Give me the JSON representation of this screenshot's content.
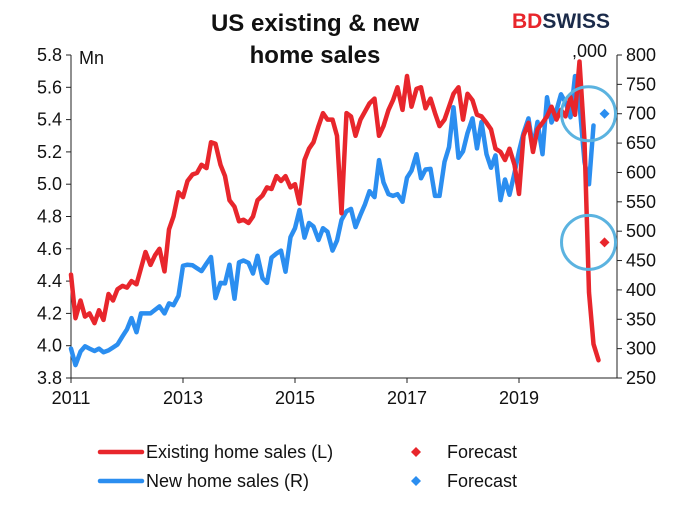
{
  "brand": {
    "part1": "BD",
    "part2": "SWISS",
    "color_bd": "#e8262c",
    "color_swiss": "#1b2b4a"
  },
  "chart_data": {
    "type": "line",
    "title": "US existing & new home sales",
    "title_lines": [
      "US existing & new",
      "home sales"
    ],
    "left_axis": {
      "unit": "Mn",
      "ticks": [
        "5.8",
        "5.6",
        "5.4",
        "5.2",
        "5.0",
        "4.8",
        "4.6",
        "4.4",
        "4.2",
        "4.0",
        "3.8"
      ],
      "ylim": [
        3.8,
        5.8
      ]
    },
    "right_axis": {
      "unit": ",000",
      "ticks": [
        "800",
        "750",
        "700",
        "650",
        "600",
        "550",
        "500",
        "450",
        "400",
        "350",
        "300",
        "250"
      ],
      "ylim": [
        250,
        800
      ]
    },
    "x_ticks": [
      {
        "label": "2011",
        "year": 2011
      },
      {
        "label": "2013",
        "year": 2013
      },
      {
        "label": "2015",
        "year": 2015
      },
      {
        "label": "2017",
        "year": 2017
      },
      {
        "label": "2019",
        "year": 2019
      }
    ],
    "xlim": [
      2011,
      2020.75
    ],
    "series": [
      {
        "name": "Existing home sales (L)",
        "axis": "left",
        "color": "#e8262c",
        "points": [
          [
            2011.0,
            4.44
          ],
          [
            2011.08,
            4.17
          ],
          [
            2011.17,
            4.28
          ],
          [
            2011.25,
            4.18
          ],
          [
            2011.33,
            4.2
          ],
          [
            2011.42,
            4.14
          ],
          [
            2011.5,
            4.22
          ],
          [
            2011.58,
            4.16
          ],
          [
            2011.67,
            4.32
          ],
          [
            2011.75,
            4.28
          ],
          [
            2011.83,
            4.35
          ],
          [
            2011.92,
            4.37
          ],
          [
            2012.0,
            4.36
          ],
          [
            2012.08,
            4.4
          ],
          [
            2012.17,
            4.38
          ],
          [
            2012.25,
            4.48
          ],
          [
            2012.33,
            4.58
          ],
          [
            2012.42,
            4.5
          ],
          [
            2012.5,
            4.56
          ],
          [
            2012.58,
            4.6
          ],
          [
            2012.67,
            4.46
          ],
          [
            2012.75,
            4.72
          ],
          [
            2012.83,
            4.8
          ],
          [
            2012.92,
            4.95
          ],
          [
            2013.0,
            4.92
          ],
          [
            2013.08,
            5.02
          ],
          [
            2013.17,
            5.06
          ],
          [
            2013.25,
            5.07
          ],
          [
            2013.33,
            5.12
          ],
          [
            2013.42,
            5.1
          ],
          [
            2013.5,
            5.26
          ],
          [
            2013.58,
            5.25
          ],
          [
            2013.67,
            5.12
          ],
          [
            2013.75,
            5.05
          ],
          [
            2013.83,
            4.9
          ],
          [
            2013.92,
            4.86
          ],
          [
            2014.0,
            4.77
          ],
          [
            2014.08,
            4.78
          ],
          [
            2014.17,
            4.76
          ],
          [
            2014.25,
            4.8
          ],
          [
            2014.33,
            4.9
          ],
          [
            2014.42,
            4.93
          ],
          [
            2014.5,
            4.98
          ],
          [
            2014.58,
            4.97
          ],
          [
            2014.67,
            5.05
          ],
          [
            2014.75,
            5.02
          ],
          [
            2014.83,
            5.05
          ],
          [
            2014.92,
            4.98
          ],
          [
            2015.0,
            5.0
          ],
          [
            2015.08,
            4.88
          ],
          [
            2015.17,
            5.15
          ],
          [
            2015.25,
            5.22
          ],
          [
            2015.33,
            5.26
          ],
          [
            2015.42,
            5.36
          ],
          [
            2015.5,
            5.44
          ],
          [
            2015.58,
            5.4
          ],
          [
            2015.67,
            5.4
          ],
          [
            2015.75,
            5.3
          ],
          [
            2015.83,
            4.82
          ],
          [
            2015.92,
            5.44
          ],
          [
            2016.0,
            5.42
          ],
          [
            2016.08,
            5.3
          ],
          [
            2016.17,
            5.4
          ],
          [
            2016.25,
            5.45
          ],
          [
            2016.33,
            5.5
          ],
          [
            2016.42,
            5.53
          ],
          [
            2016.5,
            5.3
          ],
          [
            2016.58,
            5.36
          ],
          [
            2016.67,
            5.46
          ],
          [
            2016.75,
            5.52
          ],
          [
            2016.83,
            5.6
          ],
          [
            2016.92,
            5.46
          ],
          [
            2017.0,
            5.67
          ],
          [
            2017.08,
            5.48
          ],
          [
            2017.17,
            5.59
          ],
          [
            2017.25,
            5.6
          ],
          [
            2017.33,
            5.47
          ],
          [
            2017.42,
            5.53
          ],
          [
            2017.5,
            5.44
          ],
          [
            2017.58,
            5.36
          ],
          [
            2017.67,
            5.4
          ],
          [
            2017.75,
            5.48
          ],
          [
            2017.83,
            5.56
          ],
          [
            2017.92,
            5.6
          ],
          [
            2018.0,
            5.4
          ],
          [
            2018.08,
            5.56
          ],
          [
            2018.17,
            5.52
          ],
          [
            2018.25,
            5.43
          ],
          [
            2018.33,
            5.42
          ],
          [
            2018.42,
            5.38
          ],
          [
            2018.5,
            5.34
          ],
          [
            2018.58,
            5.22
          ],
          [
            2018.67,
            5.2
          ],
          [
            2018.75,
            5.15
          ],
          [
            2018.83,
            5.22
          ],
          [
            2018.92,
            5.12
          ],
          [
            2019.0,
            4.94
          ],
          [
            2019.08,
            5.3
          ],
          [
            2019.17,
            5.38
          ],
          [
            2019.25,
            5.2
          ],
          [
            2019.33,
            5.34
          ],
          [
            2019.42,
            5.38
          ],
          [
            2019.5,
            5.42
          ],
          [
            2019.58,
            5.48
          ],
          [
            2019.67,
            5.4
          ],
          [
            2019.75,
            5.46
          ],
          [
            2019.83,
            5.42
          ],
          [
            2019.92,
            5.54
          ],
          [
            2020.0,
            5.43
          ],
          [
            2020.08,
            5.76
          ],
          [
            2020.17,
            5.27
          ],
          [
            2020.25,
            4.33
          ],
          [
            2020.33,
            4.01
          ],
          [
            2020.42,
            3.91
          ]
        ]
      },
      {
        "name": "New home sales (R)",
        "axis": "right",
        "color": "#2b8ef0",
        "points": [
          [
            2011.0,
            300
          ],
          [
            2011.08,
            272
          ],
          [
            2011.17,
            295
          ],
          [
            2011.25,
            304
          ],
          [
            2011.33,
            300
          ],
          [
            2011.42,
            296
          ],
          [
            2011.5,
            300
          ],
          [
            2011.58,
            294
          ],
          [
            2011.67,
            297
          ],
          [
            2011.75,
            302
          ],
          [
            2011.83,
            307
          ],
          [
            2011.92,
            321
          ],
          [
            2012.0,
            333
          ],
          [
            2012.08,
            352
          ],
          [
            2012.17,
            328
          ],
          [
            2012.25,
            360
          ],
          [
            2012.33,
            360
          ],
          [
            2012.42,
            360
          ],
          [
            2012.5,
            366
          ],
          [
            2012.58,
            372
          ],
          [
            2012.67,
            360
          ],
          [
            2012.75,
            377
          ],
          [
            2012.83,
            374
          ],
          [
            2012.92,
            390
          ],
          [
            2013.0,
            441
          ],
          [
            2013.08,
            443
          ],
          [
            2013.17,
            442
          ],
          [
            2013.25,
            437
          ],
          [
            2013.33,
            432
          ],
          [
            2013.42,
            445
          ],
          [
            2013.5,
            456
          ],
          [
            2013.58,
            386
          ],
          [
            2013.67,
            412
          ],
          [
            2013.75,
            411
          ],
          [
            2013.83,
            443
          ],
          [
            2013.92,
            385
          ],
          [
            2014.0,
            447
          ],
          [
            2014.08,
            450
          ],
          [
            2014.17,
            446
          ],
          [
            2014.25,
            428
          ],
          [
            2014.33,
            458
          ],
          [
            2014.42,
            420
          ],
          [
            2014.5,
            412
          ],
          [
            2014.58,
            455
          ],
          [
            2014.67,
            462
          ],
          [
            2014.75,
            467
          ],
          [
            2014.83,
            431
          ],
          [
            2014.92,
            490
          ],
          [
            2015.0,
            505
          ],
          [
            2015.08,
            536
          ],
          [
            2015.17,
            489
          ],
          [
            2015.25,
            514
          ],
          [
            2015.33,
            508
          ],
          [
            2015.42,
            485
          ],
          [
            2015.5,
            505
          ],
          [
            2015.58,
            499
          ],
          [
            2015.67,
            467
          ],
          [
            2015.75,
            484
          ],
          [
            2015.83,
            519
          ],
          [
            2015.92,
            534
          ],
          [
            2016.0,
            538
          ],
          [
            2016.08,
            507
          ],
          [
            2016.17,
            528
          ],
          [
            2016.25,
            546
          ],
          [
            2016.33,
            568
          ],
          [
            2016.42,
            558
          ],
          [
            2016.5,
            621
          ],
          [
            2016.58,
            583
          ],
          [
            2016.67,
            563
          ],
          [
            2016.75,
            560
          ],
          [
            2016.83,
            563
          ],
          [
            2016.92,
            550
          ],
          [
            2017.0,
            591
          ],
          [
            2017.08,
            603
          ],
          [
            2017.17,
            631
          ],
          [
            2017.25,
            590
          ],
          [
            2017.33,
            605
          ],
          [
            2017.42,
            606
          ],
          [
            2017.5,
            560
          ],
          [
            2017.58,
            560
          ],
          [
            2017.67,
            618
          ],
          [
            2017.75,
            643
          ],
          [
            2017.83,
            711
          ],
          [
            2017.92,
            625
          ],
          [
            2018.0,
            636
          ],
          [
            2018.08,
            667
          ],
          [
            2018.17,
            692
          ],
          [
            2018.25,
            641
          ],
          [
            2018.33,
            686
          ],
          [
            2018.42,
            631
          ],
          [
            2018.5,
            608
          ],
          [
            2018.58,
            629
          ],
          [
            2018.67,
            553
          ],
          [
            2018.75,
            588
          ],
          [
            2018.83,
            562
          ],
          [
            2018.92,
            599
          ],
          [
            2019.0,
            636
          ],
          [
            2019.08,
            667
          ],
          [
            2019.17,
            692
          ],
          [
            2019.25,
            641
          ],
          [
            2019.33,
            686
          ],
          [
            2019.42,
            631
          ],
          [
            2019.5,
            728
          ],
          [
            2019.58,
            685
          ],
          [
            2019.67,
            706
          ],
          [
            2019.75,
            733
          ],
          [
            2019.83,
            719
          ],
          [
            2019.92,
            694
          ],
          [
            2020.0,
            764
          ],
          [
            2020.08,
            716
          ],
          [
            2020.17,
            618
          ],
          [
            2020.25,
            580
          ],
          [
            2020.33,
            680
          ]
        ]
      }
    ],
    "forecasts": [
      {
        "name": "Forecast",
        "axis": "left",
        "color": "#e8262c",
        "x": 2020.42,
        "value": 4.64
      },
      {
        "name": "Forecast",
        "axis": "right",
        "color": "#2b8ef0",
        "x": 2020.42,
        "value": 700
      }
    ],
    "highlight_circles": [
      {
        "axis": "right",
        "x": 2020.42,
        "value": 700,
        "color": "#5bb3e0"
      },
      {
        "axis": "left",
        "x": 2020.42,
        "value": 4.64,
        "color": "#5bb3e0"
      }
    ],
    "legend": [
      {
        "label": "Existing home sales (L)",
        "kind": "line",
        "color": "#e8262c"
      },
      {
        "label": "Forecast",
        "kind": "diamond",
        "color": "#e8262c"
      },
      {
        "label": "New home sales (R)",
        "kind": "line",
        "color": "#2b8ef0"
      },
      {
        "label": "Forecast",
        "kind": "diamond",
        "color": "#2b8ef0"
      }
    ]
  }
}
